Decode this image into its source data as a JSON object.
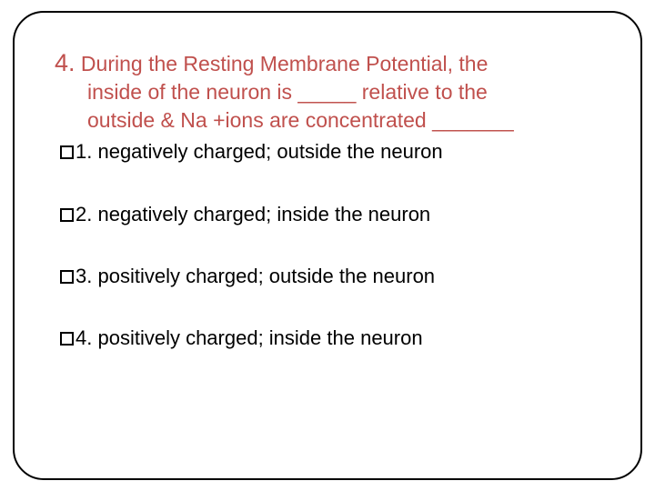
{
  "question": {
    "number": "4.",
    "line1": "  During the Resting Membrane Potential,  the",
    "line2": "inside of the neuron  is _____ relative to the",
    "line3": "outside & Na +ions are concentrated _______"
  },
  "options": [
    {
      "num": "1.",
      "text": " negatively charged;  outside the neuron"
    },
    {
      "num": "2.",
      "text": " negatively charged;  inside the neuron"
    },
    {
      "num": "3.",
      "text": " positively charged;  outside the neuron"
    },
    {
      "num": "4.",
      "text": " positively charged;  inside the neuron"
    }
  ],
  "colors": {
    "accent": "#c0504d",
    "text": "#000000",
    "border": "#000000",
    "background": "#ffffff"
  },
  "typography": {
    "qnum_fontsize": 27,
    "qtext_fontsize": 23,
    "option_fontsize": 22,
    "font_family": "Arial"
  },
  "layout": {
    "slide_width": 720,
    "slide_height": 540,
    "frame_radius": 34,
    "frame_border_width": 2,
    "option_spacing": 42
  }
}
